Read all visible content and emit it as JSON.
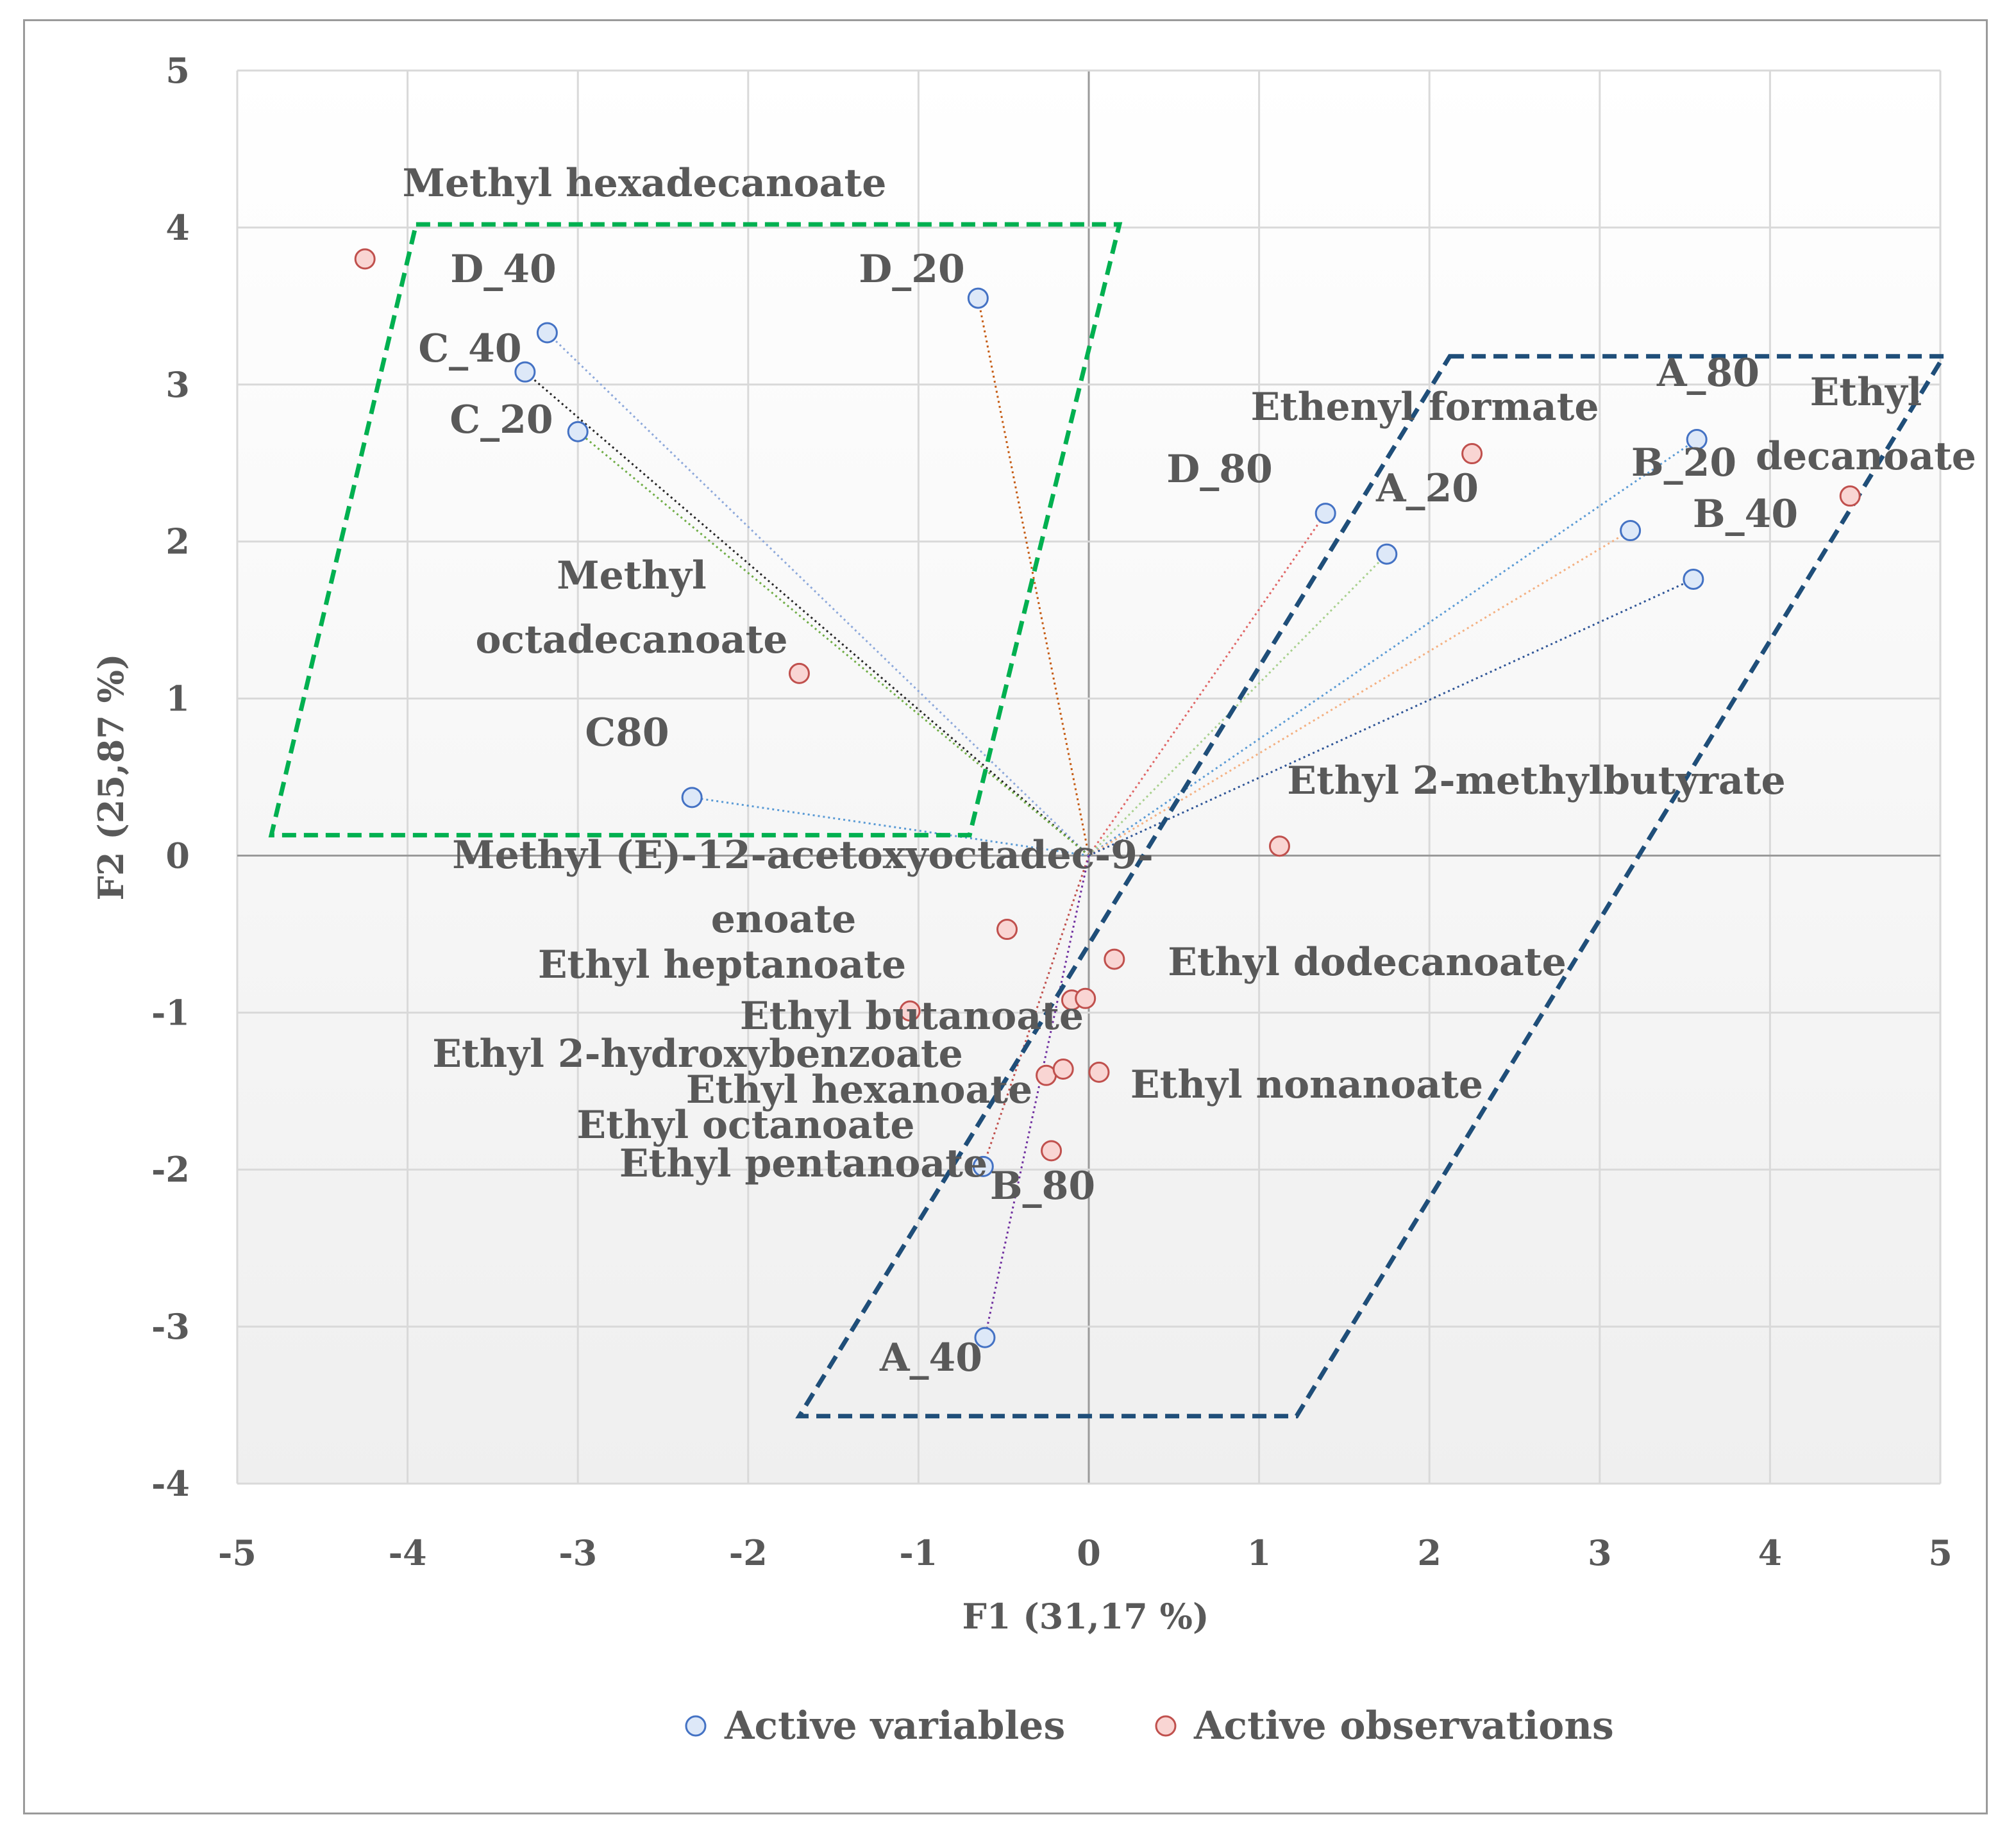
{
  "chart_data": {
    "type": "scatter",
    "xlabel": "F1 (31,17 %)",
    "ylabel": "F2 (25,87 %)",
    "xlim": [
      -5,
      5
    ],
    "ylim": [
      -4,
      5
    ],
    "xticks": [
      "-5",
      "-4",
      "-3",
      "-2",
      "-1",
      "0",
      "1",
      "2",
      "3",
      "4",
      "5"
    ],
    "yticks": [
      "5",
      "4",
      "3",
      "2",
      "1",
      "0",
      "-1",
      "-2",
      "-3",
      "-4"
    ],
    "grid": true,
    "legend": {
      "placement": "bottom-center",
      "entries": [
        {
          "name": "Active variables",
          "color": "#4472c4"
        },
        {
          "name": "Active observations",
          "color": "#c0504d"
        }
      ]
    },
    "series": [
      {
        "name": "Active variables",
        "marker_fill": "#dde8f8",
        "marker_edge": "#4472c4",
        "points": [
          {
            "label": "D_40",
            "x": -3.18,
            "y": 3.33,
            "vector_color": "#8ea9db"
          },
          {
            "label": "C_40",
            "x": -3.31,
            "y": 3.08,
            "vector_color": "#262626"
          },
          {
            "label": "C_20",
            "x": -3.0,
            "y": 2.7,
            "vector_color": "#70ad47"
          },
          {
            "label": "D_20",
            "x": -0.65,
            "y": 3.55,
            "vector_color": "#c55a11"
          },
          {
            "label": "C80",
            "x": -2.33,
            "y": 0.37,
            "vector_color": "#5b9bd5"
          },
          {
            "label": "D_80",
            "x": 1.39,
            "y": 2.18,
            "vector_color": "#e06666"
          },
          {
            "label": "A_20",
            "x": 1.75,
            "y": 1.92,
            "vector_color": "#a9d18e"
          },
          {
            "label": "A_80",
            "x": 3.57,
            "y": 2.65,
            "vector_color": "#5b9bd5"
          },
          {
            "label": "B_20",
            "x": 3.18,
            "y": 2.07,
            "vector_color": "#f4b183"
          },
          {
            "label": "B_40",
            "x": 3.55,
            "y": 1.76,
            "vector_color": "#2f5597"
          },
          {
            "label": "B_80",
            "x": -0.62,
            "y": -1.98,
            "vector_color": "#c0504d"
          },
          {
            "label": "A_40",
            "x": -0.61,
            "y": -3.07,
            "vector_color": "#7030a0"
          }
        ]
      },
      {
        "name": "Active observations",
        "marker_fill": "#f9d5d3",
        "marker_edge": "#c0504d",
        "points": [
          {
            "label": "Methyl hexadecanoate",
            "x": -4.25,
            "y": 3.8
          },
          {
            "label": "Methyl octadecanoate",
            "x": -1.7,
            "y": 1.16
          },
          {
            "label": "Ethenyl formate",
            "x": 2.25,
            "y": 2.56
          },
          {
            "label": "Ethyl decanoate",
            "x": 4.47,
            "y": 2.29
          },
          {
            "label": "Ethyl 2-methylbutyrate",
            "x": 1.12,
            "y": 0.06
          },
          {
            "label": "Methyl (E)-12-acetoxyoctadec-9-enoate",
            "x": -0.48,
            "y": -0.47
          },
          {
            "label": "Ethyl dodecanoate",
            "x": 0.15,
            "y": -0.66
          },
          {
            "label": "Ethyl heptanoate",
            "x": -1.05,
            "y": -0.99
          },
          {
            "label": "Ethyl butanoate",
            "x": -0.1,
            "y": -0.92
          },
          {
            "label": "Ethyl 2-hydroxybenzoate",
            "x": -0.25,
            "y": -1.4
          },
          {
            "label": "Ethyl hexanoate",
            "x": -0.15,
            "y": -1.36
          },
          {
            "label": "Ethyl nonanoate",
            "x": 0.06,
            "y": -1.38
          },
          {
            "label": "Ethyl octanoate",
            "x": -0.22,
            "y": -1.88
          },
          {
            "label": "Ethyl pentanoate",
            "x": -0.02,
            "y": -0.91
          }
        ]
      }
    ],
    "annotations": {
      "green_region": {
        "color": "#00b050",
        "corners": [
          [
            -3.95,
            4.02
          ],
          [
            0.18,
            4.02
          ],
          [
            -0.7,
            0.13
          ],
          [
            -4.8,
            0.13
          ]
        ]
      },
      "blue_region": {
        "color": "#1f4e79",
        "corners": [
          [
            2.12,
            3.18
          ],
          [
            5.02,
            3.18
          ],
          [
            1.22,
            -3.57
          ],
          [
            -1.7,
            -3.57
          ]
        ]
      }
    }
  },
  "labels": {
    "d40": "D_40",
    "c40": "C_40",
    "c20": "C_20",
    "d20": "D_20",
    "c80": "C80",
    "d80": "D_80",
    "a20": "A_20",
    "a80": "A_80",
    "b20": "B_20",
    "b40": "B_40",
    "b80": "B_80",
    "a40": "A_40",
    "methyl_hexadecanoate": "Methyl hexadecanoate",
    "methyl_octadecanoate_1": "Methyl",
    "methyl_octadecanoate_2": "octadecanoate",
    "ethenyl_formate": "Ethenyl formate",
    "ethyl_decanoate_1": "Ethyl",
    "ethyl_decanoate_2": "decanoate",
    "ethyl_2_methylbutyrate": "Ethyl 2-methylbutyrate",
    "methyl_acetoxy_1": "Methyl (E)-12-acetoxyoctadec-9-",
    "methyl_acetoxy_2": "enoate",
    "ethyl_heptanoate": "Ethyl heptanoate",
    "ethyl_dodecanoate": "Ethyl dodecanoate",
    "ethyl_butanoate": "Ethyl butanoate",
    "ethyl_2_hydroxybenzoate": "Ethyl 2-hydroxybenzoate",
    "ethyl_hexanoate": "Ethyl hexanoate",
    "ethyl_nonanoate": "Ethyl nonanoate",
    "ethyl_octanoate": "Ethyl  octanoate",
    "ethyl_pentanoate": "Ethyl pentanoate"
  }
}
